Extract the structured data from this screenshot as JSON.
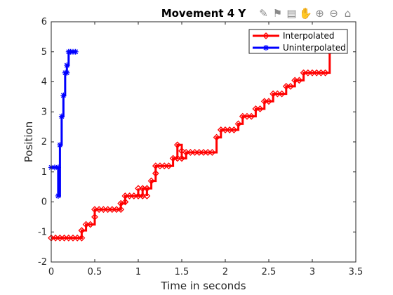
{
  "chart_data": {
    "type": "line",
    "title": "Movement 4 Y",
    "xlabel": "Time in seconds",
    "ylabel": "Position",
    "xlim": [
      0,
      3.5
    ],
    "ylim": [
      -2,
      6
    ],
    "xticks": [
      0,
      0.5,
      1,
      1.5,
      2,
      2.5,
      3,
      3.5
    ],
    "yticks": [
      -2,
      -1,
      0,
      1,
      2,
      3,
      4,
      5,
      6
    ],
    "xtick_labels": [
      "0",
      "0.5",
      "1",
      "1.5",
      "2",
      "2.5",
      "3",
      "3.5"
    ],
    "ytick_labels": [
      "-2",
      "-1",
      "0",
      "1",
      "2",
      "3",
      "4",
      "5",
      "6"
    ],
    "grid": false,
    "legend_position": "top-right",
    "series": [
      {
        "name": "Interpolated",
        "color": "#ff0000",
        "marker": "diamond",
        "x": [
          0.0,
          0.05,
          0.1,
          0.15,
          0.2,
          0.25,
          0.3,
          0.35,
          0.35,
          0.4,
          0.45,
          0.5,
          0.5,
          0.55,
          0.6,
          0.65,
          0.7,
          0.75,
          0.8,
          0.8,
          0.85,
          0.85,
          0.9,
          0.95,
          1.0,
          1.0,
          1.05,
          1.05,
          1.1,
          1.1,
          1.15,
          1.2,
          1.2,
          1.25,
          1.3,
          1.35,
          1.4,
          1.45,
          1.45,
          1.5,
          1.5,
          1.55,
          1.6,
          1.65,
          1.7,
          1.75,
          1.8,
          1.85,
          1.9,
          1.95,
          2.0,
          2.05,
          2.1,
          2.15,
          2.2,
          2.25,
          2.3,
          2.35,
          2.4,
          2.45,
          2.5,
          2.55,
          2.6,
          2.65,
          2.7,
          2.75,
          2.8,
          2.85,
          2.9,
          2.95,
          3.0,
          3.05,
          3.1,
          3.15,
          3.2
        ],
        "y": [
          -1.2,
          -1.2,
          -1.2,
          -1.2,
          -1.2,
          -1.2,
          -1.2,
          -1.2,
          -0.95,
          -0.75,
          -0.75,
          -0.5,
          -0.25,
          -0.25,
          -0.25,
          -0.25,
          -0.25,
          -0.25,
          -0.25,
          -0.05,
          0.0,
          0.2,
          0.2,
          0.2,
          0.45,
          0.2,
          0.2,
          0.45,
          0.2,
          0.45,
          0.7,
          0.95,
          1.2,
          1.2,
          1.2,
          1.2,
          1.45,
          1.45,
          1.9,
          1.7,
          1.45,
          1.65,
          1.65,
          1.65,
          1.65,
          1.65,
          1.65,
          1.65,
          2.15,
          2.4,
          2.4,
          2.4,
          2.4,
          2.6,
          2.85,
          2.85,
          2.85,
          3.1,
          3.1,
          3.35,
          3.35,
          3.6,
          3.6,
          3.6,
          3.85,
          3.85,
          4.05,
          4.05,
          4.3,
          4.3,
          4.3,
          4.3,
          4.3,
          4.3,
          5.0
        ]
      },
      {
        "name": "Uninterpolated",
        "color": "#0000ff",
        "marker": "asterisk",
        "x": [
          0.0,
          0.04,
          0.08,
          0.08,
          0.1,
          0.12,
          0.14,
          0.16,
          0.18,
          0.18,
          0.2,
          0.22,
          0.24,
          0.26,
          0.28
        ],
        "y": [
          1.15,
          1.15,
          1.15,
          0.2,
          1.9,
          2.85,
          3.55,
          4.3,
          4.3,
          4.55,
          5.0,
          5.0,
          5.0,
          5.0,
          5.0
        ]
      }
    ]
  },
  "toolbar": {
    "icons": [
      "brush-icon",
      "data-tip-icon",
      "insert-legend-icon",
      "pan-hand-icon",
      "zoom-in-icon",
      "zoom-out-icon",
      "home-icon"
    ]
  }
}
